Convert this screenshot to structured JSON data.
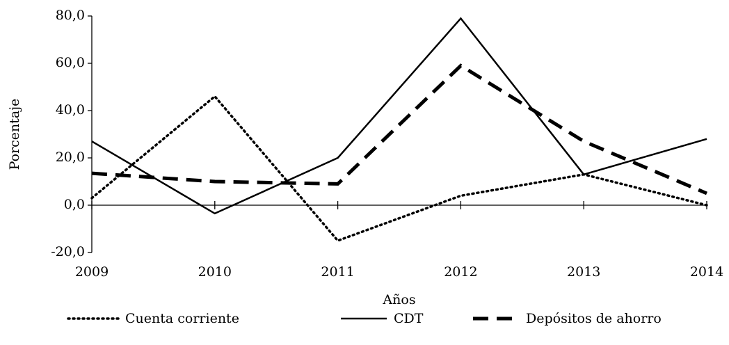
{
  "chart_data": {
    "type": "line",
    "x_label": "Años",
    "y_label": "Porcentaje",
    "categories": [
      "2009",
      "2010",
      "2011",
      "2012",
      "2013",
      "2014"
    ],
    "series": [
      {
        "name": "Cuenta corriente",
        "color": "#000000",
        "style": "dotted",
        "values": [
          3,
          46,
          -15,
          4,
          13,
          0
        ]
      },
      {
        "name": "CDT",
        "color": "#000000",
        "style": "solid",
        "values": [
          27,
          -3.5,
          20,
          79,
          13,
          28
        ]
      },
      {
        "name": "Depósitos de ahorro",
        "color": "#000000",
        "style": "dashed",
        "values": [
          13.5,
          10,
          9,
          59,
          27,
          5
        ]
      }
    ],
    "ylim": [
      -20,
      80
    ],
    "yticks": [
      {
        "value": -20,
        "label": "-20,0"
      },
      {
        "value": 0,
        "label": "0,0"
      },
      {
        "value": 20,
        "label": "20,0"
      },
      {
        "value": 40,
        "label": "40,0"
      },
      {
        "value": 60,
        "label": "60,0"
      },
      {
        "value": 80,
        "label": "80,0"
      }
    ],
    "legend": "bottom"
  }
}
